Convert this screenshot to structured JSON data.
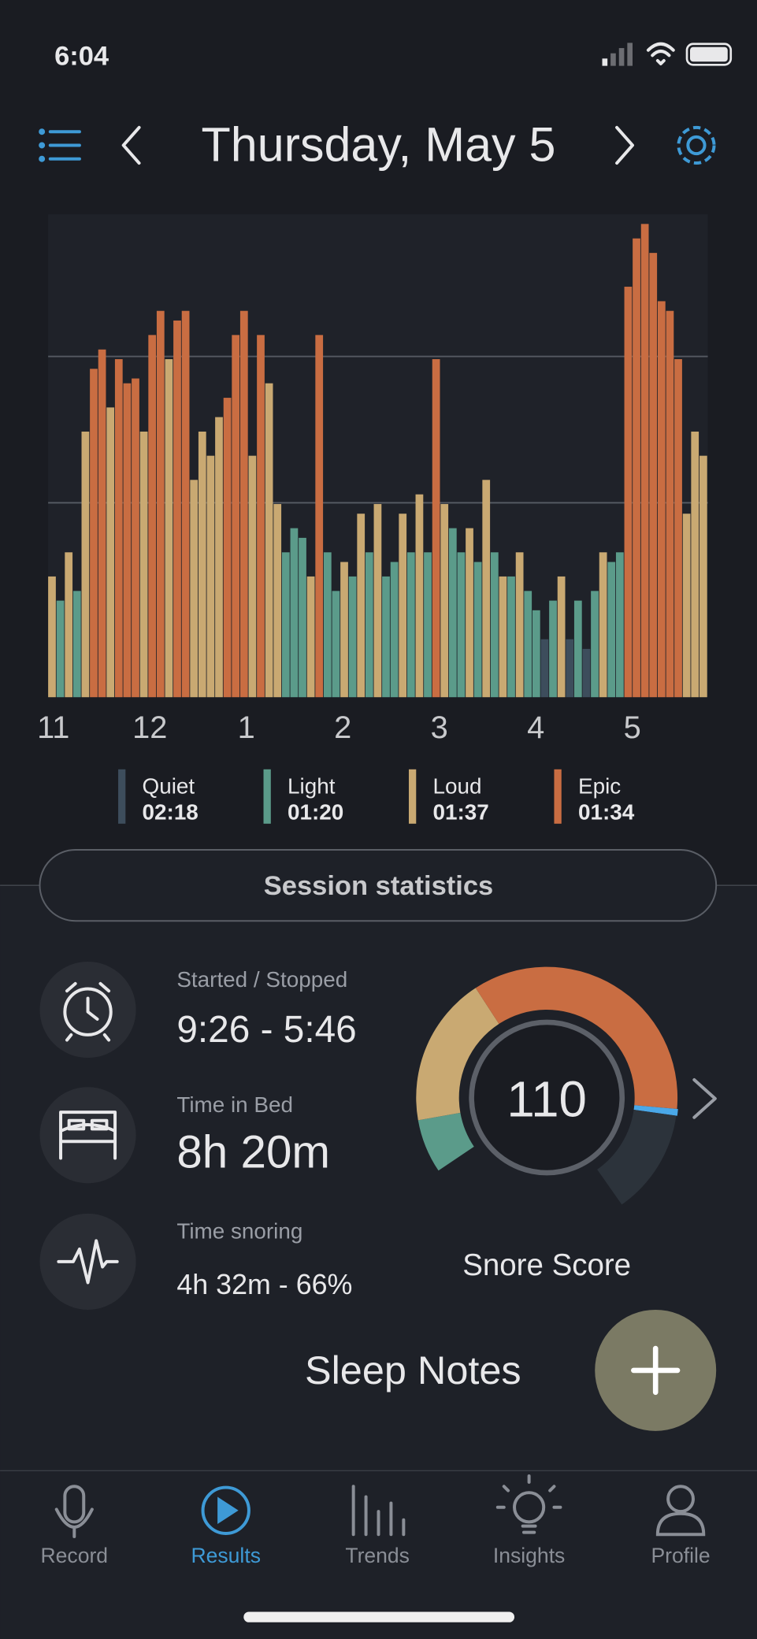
{
  "status_bar": {
    "time": "6:04"
  },
  "header": {
    "date": "Thursday, May 5"
  },
  "snore_chart": {
    "type": "bar",
    "x_labels": [
      "11",
      "12",
      "1",
      "2",
      "3",
      "4",
      "5"
    ],
    "ylim": [
      0,
      100
    ],
    "values": [
      25,
      20,
      30,
      22,
      55,
      68,
      72,
      60,
      70,
      65,
      66,
      55,
      75,
      80,
      70,
      78,
      80,
      45,
      55,
      50,
      58,
      62,
      75,
      80,
      50,
      75,
      65,
      40,
      30,
      35,
      33,
      25,
      75,
      30,
      22,
      28,
      25,
      38,
      30,
      40,
      25,
      28,
      38,
      30,
      42,
      30,
      70,
      40,
      35,
      30,
      35,
      28,
      45,
      30,
      25,
      25,
      30,
      22,
      18,
      12,
      20,
      25,
      12,
      20,
      10,
      22,
      30,
      28,
      30,
      85,
      95,
      98,
      92,
      82,
      80,
      70,
      38,
      55,
      50
    ],
    "levels": [
      "Loud",
      "Light",
      "Loud",
      "Light",
      "Loud",
      "Epic",
      "Epic",
      "Loud",
      "Epic",
      "Epic",
      "Epic",
      "Loud",
      "Epic",
      "Epic",
      "Loud",
      "Epic",
      "Epic",
      "Loud",
      "Loud",
      "Loud",
      "Loud",
      "Epic",
      "Epic",
      "Epic",
      "Loud",
      "Epic",
      "Loud",
      "Loud",
      "Light",
      "Light",
      "Light",
      "Loud",
      "Epic",
      "Light",
      "Light",
      "Loud",
      "Light",
      "Loud",
      "Light",
      "Loud",
      "Light",
      "Light",
      "Loud",
      "Light",
      "Loud",
      "Light",
      "Epic",
      "Loud",
      "Light",
      "Light",
      "Loud",
      "Light",
      "Loud",
      "Light",
      "Loud",
      "Light",
      "Loud",
      "Light",
      "Light",
      "Quiet",
      "Light",
      "Loud",
      "Quiet",
      "Light",
      "Quiet",
      "Light",
      "Loud",
      "Light",
      "Light",
      "Epic",
      "Epic",
      "Epic",
      "Epic",
      "Epic",
      "Epic",
      "Epic",
      "Loud",
      "Loud",
      "Loud"
    ],
    "legend": [
      {
        "name": "Quiet",
        "duration": "02:18",
        "color": "#3d4d5c"
      },
      {
        "name": "Light",
        "duration": "01:20",
        "color": "#5b9b8a"
      },
      {
        "name": "Loud",
        "duration": "01:37",
        "color": "#c9a972"
      },
      {
        "name": "Epic",
        "duration": "01:34",
        "color": "#c96d42"
      }
    ]
  },
  "session_button": "Session statistics",
  "stats": [
    {
      "label": "Started / Stopped",
      "value": "9:26 - 5:46"
    },
    {
      "label": "Time in Bed",
      "value": "8h 20m"
    },
    {
      "label": "Time snoring",
      "value": "4h 32m - 66%"
    }
  ],
  "snore_score": {
    "value": 110,
    "label": "Snore Score"
  },
  "sleep_notes": "Sleep Notes",
  "tabs": [
    {
      "label": "Record"
    },
    {
      "label": "Results"
    },
    {
      "label": "Trends"
    },
    {
      "label": "Insights"
    },
    {
      "label": "Profile"
    }
  ]
}
